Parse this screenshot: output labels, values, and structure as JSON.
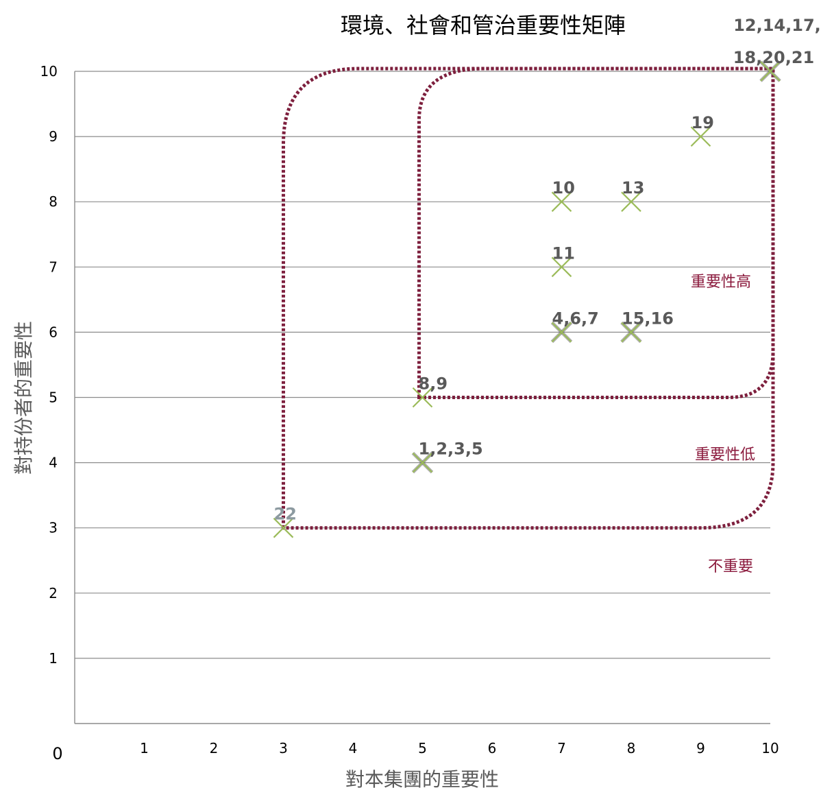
{
  "chart_data": {
    "type": "scatter",
    "title": "環境、社會和管治重要性矩陣",
    "xlabel": "對本集團的重要性",
    "ylabel": "對持份者的重要性",
    "xlim": [
      0,
      10
    ],
    "ylim": [
      0,
      10
    ],
    "x_ticks": [
      "1",
      "2",
      "3",
      "4",
      "5",
      "6",
      "7",
      "8",
      "9",
      "10"
    ],
    "y_ticks": [
      "1",
      "2",
      "3",
      "4",
      "5",
      "6",
      "7",
      "8",
      "9",
      "10"
    ],
    "origin_label": "0",
    "grid": "horizontal",
    "marker": "x",
    "marker_color": "#9bbb59",
    "region_color": "#7d1f3d",
    "points": [
      {
        "x": 10,
        "y": 10,
        "label": "12,14,17,",
        "label2": "18,20,21",
        "overlap": true
      },
      {
        "x": 9,
        "y": 9,
        "label": "19"
      },
      {
        "x": 7,
        "y": 8,
        "label": "10"
      },
      {
        "x": 8,
        "y": 8,
        "label": "13"
      },
      {
        "x": 7,
        "y": 7,
        "label": "11"
      },
      {
        "x": 7,
        "y": 6,
        "label": "4,6,7",
        "overlap": true
      },
      {
        "x": 8,
        "y": 6,
        "label": "15,16",
        "overlap": true
      },
      {
        "x": 5,
        "y": 5,
        "label": "8,9"
      },
      {
        "x": 5,
        "y": 4,
        "label": "1,2,3,5",
        "overlap": true
      },
      {
        "x": 3,
        "y": 3,
        "label": "22",
        "light": true
      }
    ],
    "regions": [
      {
        "label": "重要性高",
        "x_range": [
          5,
          10
        ],
        "y_range": [
          5,
          10
        ]
      },
      {
        "label": "重要性低",
        "x_range": [
          3,
          10
        ],
        "y_range": [
          3,
          10
        ]
      },
      {
        "label": "不重要"
      }
    ]
  }
}
